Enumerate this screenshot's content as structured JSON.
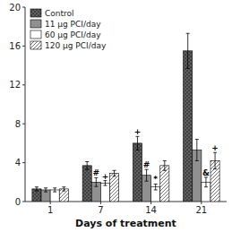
{
  "chart_data": {
    "type": "bar",
    "xlabel": "Days of treatment",
    "categories": [
      "1",
      "7",
      "14",
      "21"
    ],
    "series": [
      {
        "name": "Control",
        "color": "#404040",
        "values": [
          1.3,
          3.7,
          6.0,
          15.5
        ],
        "errors": [
          0.2,
          0.4,
          0.7,
          1.8
        ]
      },
      {
        "name": "11 μg PCI/day",
        "color": "#909090",
        "values": [
          1.2,
          2.0,
          2.7,
          5.3
        ],
        "errors": [
          0.2,
          0.45,
          0.6,
          1.1
        ]
      },
      {
        "name": "60 μg PCI/day",
        "color": "#ffffff",
        "values": [
          1.2,
          1.9,
          1.5,
          2.0
        ],
        "errors": [
          0.2,
          0.25,
          0.3,
          0.5
        ]
      },
      {
        "name": "120 μg PCI/day",
        "color": "#ffffff",
        "values": [
          1.3,
          2.9,
          3.7,
          4.2
        ],
        "errors": [
          0.2,
          0.3,
          0.5,
          0.85
        ]
      }
    ],
    "ylim": [
      0,
      20
    ],
    "yticks": [
      0,
      4,
      8,
      12,
      16,
      20
    ],
    "grid": false,
    "legend": "upper left",
    "annotations": [
      {
        "text": "#",
        "category": 1,
        "series": 1
      },
      {
        "text": "+",
        "category": 1,
        "series": 2
      },
      {
        "text": "+",
        "category": 2,
        "series": 0
      },
      {
        "text": "#",
        "category": 2,
        "series": 1
      },
      {
        "text": "*",
        "category": 2,
        "series": 2
      },
      {
        "text": "&",
        "category": 3,
        "series": 2
      },
      {
        "text": "+",
        "category": 3,
        "series": 3
      }
    ]
  }
}
